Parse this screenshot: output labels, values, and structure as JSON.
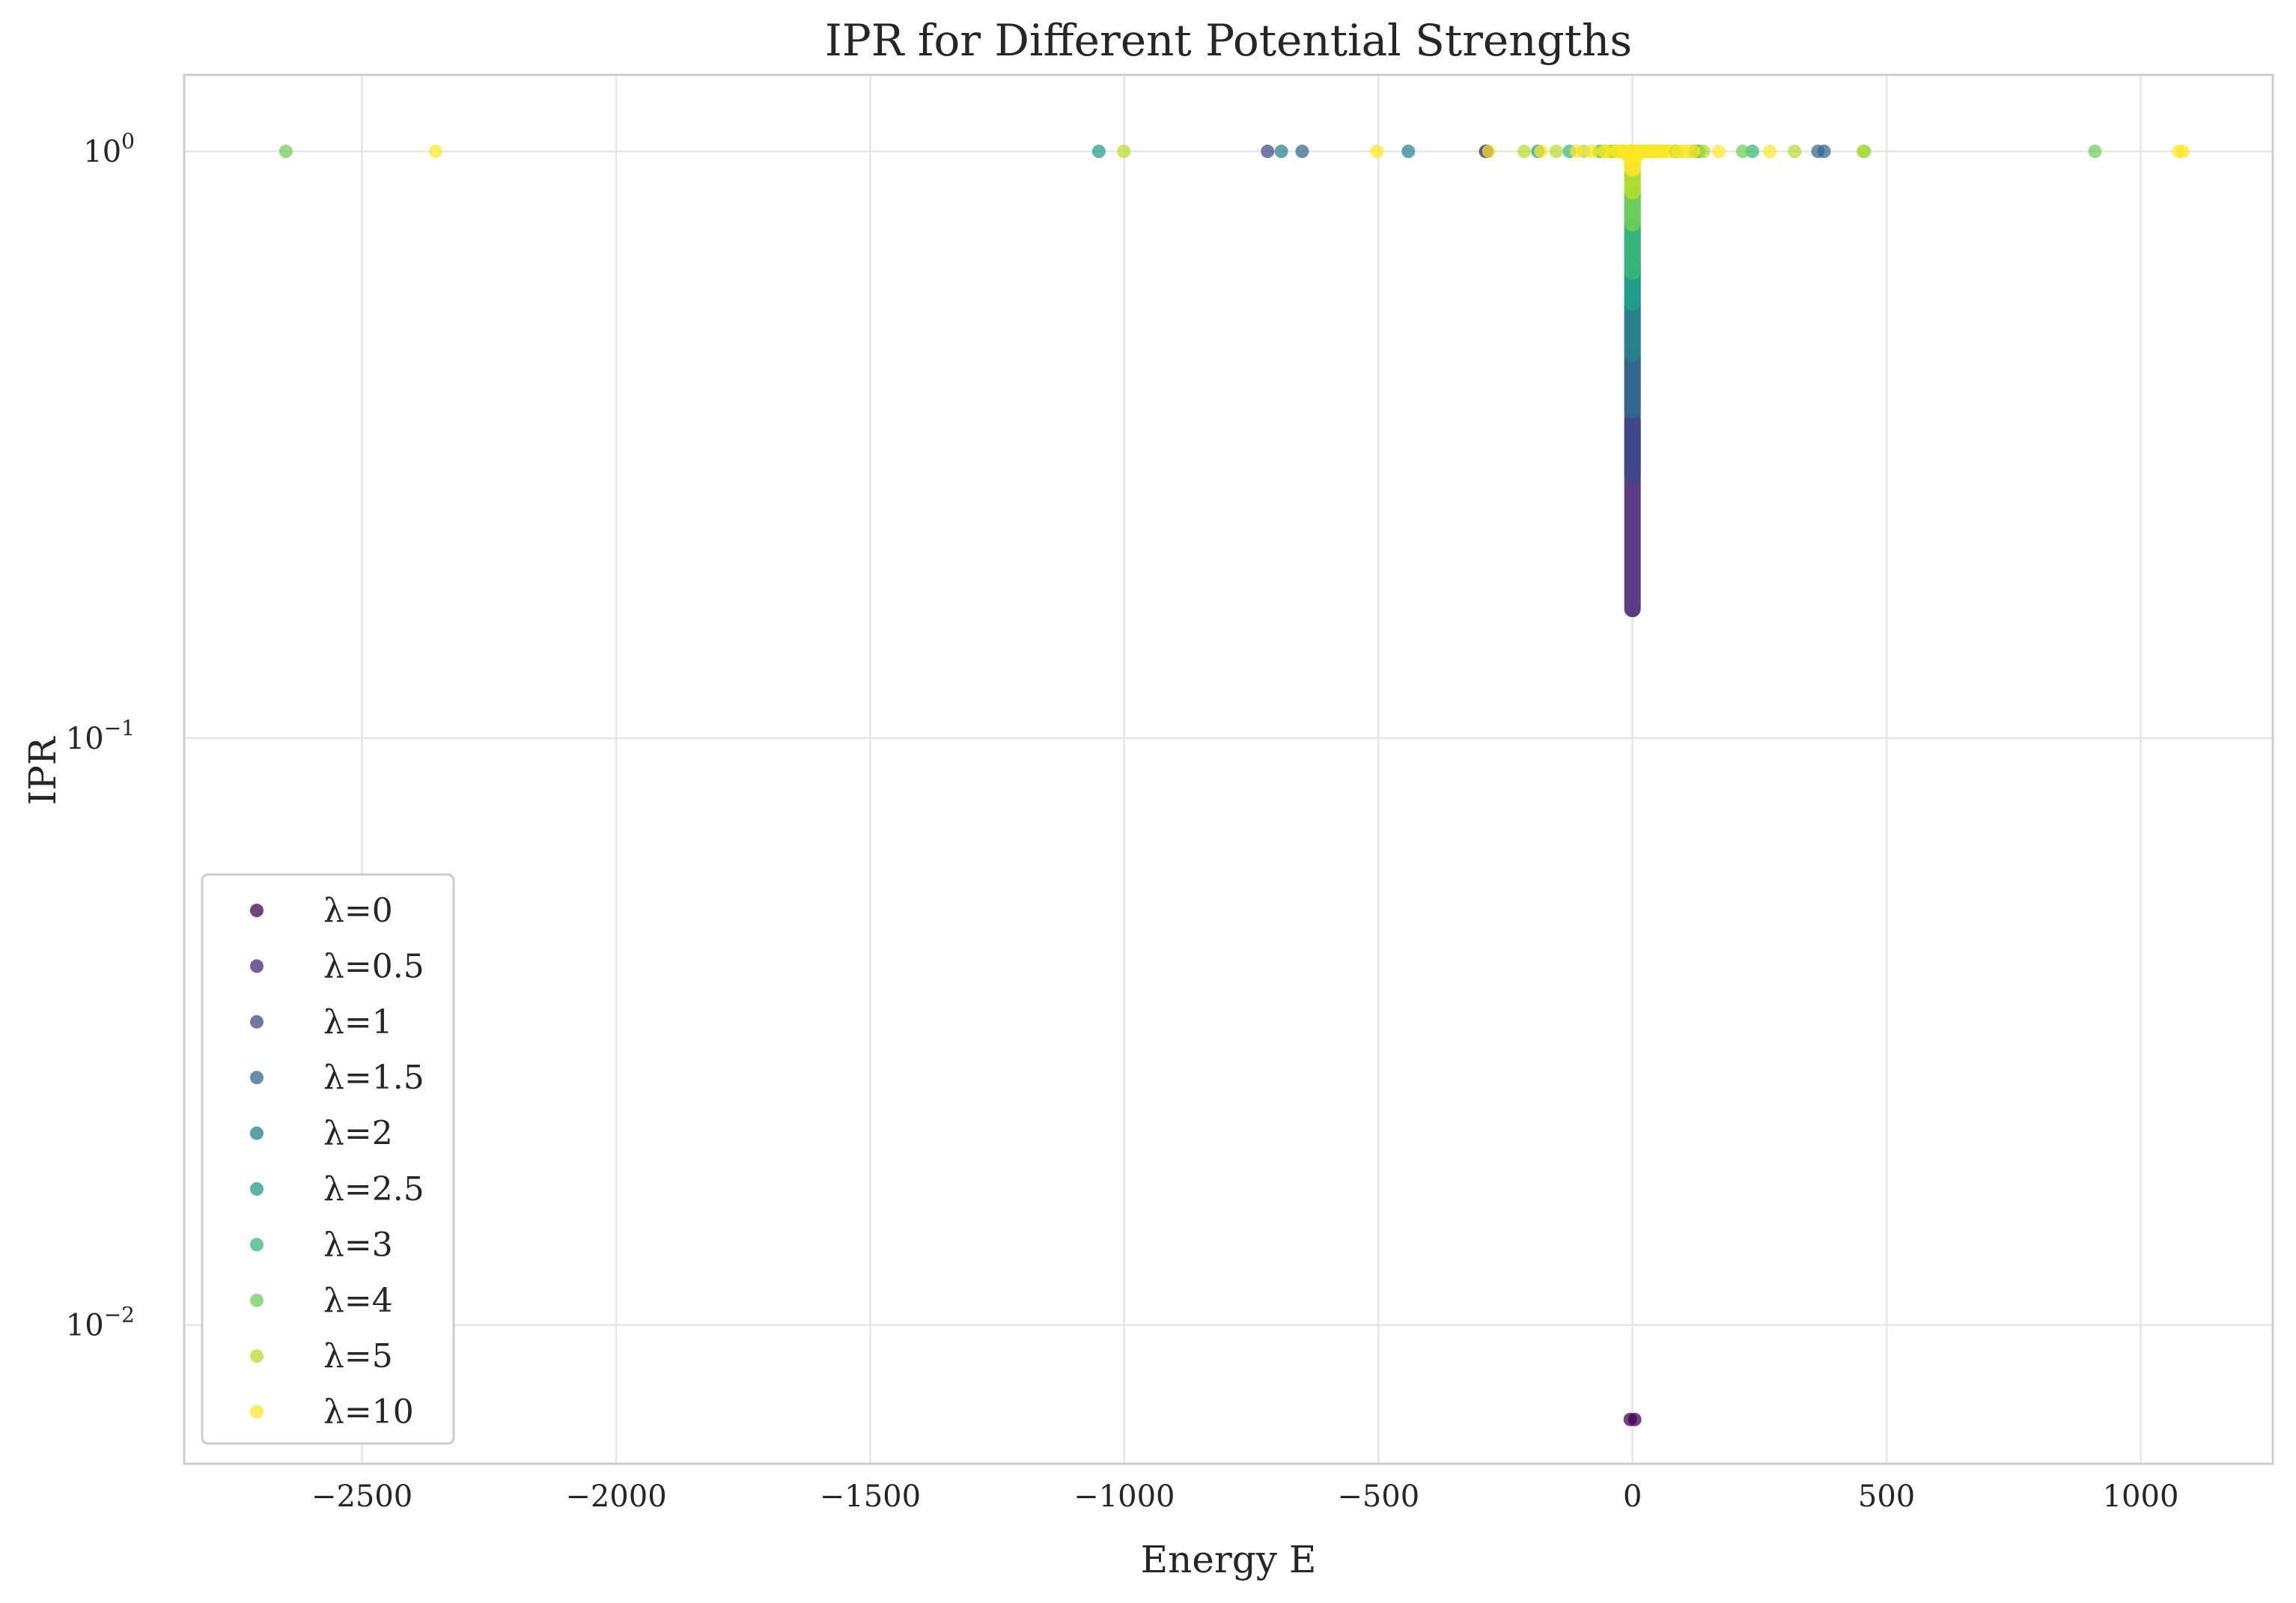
{
  "chart_data": {
    "type": "scatter",
    "title": "IPR for Different Potential Strengths",
    "xlabel": "Energy E",
    "ylabel": "IPR",
    "xscale": "linear",
    "yscale": "log",
    "xlim": [
      -2850,
      1260
    ],
    "ylim": [
      0.0058,
      1.35
    ],
    "xticks": [
      -2500,
      -2000,
      -1500,
      -1000,
      -500,
      0,
      500,
      1000
    ],
    "xtick_labels": [
      "−2500",
      "−2000",
      "−1500",
      "−1000",
      "−500",
      "0",
      "500",
      "1000"
    ],
    "yticks": [
      {
        "value": 1,
        "base": "10",
        "exp": "0"
      },
      {
        "value": 0.1,
        "base": "10",
        "exp": "−1"
      },
      {
        "value": 0.01,
        "base": "10",
        "exp": "−2"
      }
    ],
    "grid": true,
    "legend_position": "lower-left",
    "series": [
      {
        "name": "λ=0",
        "color": "#440154",
        "outliers": [],
        "stem": [
          0.0069,
          0.0069
        ]
      },
      {
        "name": "λ=0.5",
        "color": "#482878",
        "outliers": [
          [
            -289,
            1.0
          ]
        ],
        "stem": [
          0.165,
          0.35
        ]
      },
      {
        "name": "λ=1",
        "color": "#3e4989",
        "outliers": [
          [
            -718,
            1.0
          ],
          [
            -286,
            1.0
          ]
        ],
        "stem": [
          0.28,
          0.45
        ]
      },
      {
        "name": "λ=1.5",
        "color": "#31688e",
        "outliers": [
          [
            -650,
            1.0
          ],
          [
            365,
            1.0
          ],
          [
            377,
            1.0
          ]
        ],
        "stem": [
          0.36,
          0.55
        ]
      },
      {
        "name": "λ=2",
        "color": "#26828e",
        "outliers": [
          [
            -441,
            1.0
          ],
          [
            -691,
            1.0
          ]
        ],
        "stem": [
          0.45,
          0.65
        ]
      },
      {
        "name": "λ=2.5",
        "color": "#1f9e89",
        "outliers": [
          [
            -1050,
            1.0
          ],
          [
            -186,
            1.0
          ]
        ],
        "stem": [
          0.55,
          0.75
        ]
      },
      {
        "name": "λ=3",
        "color": "#35b779",
        "outliers": [
          [
            236,
            1.0
          ],
          [
            131,
            1.0
          ],
          [
            -124,
            1.0
          ]
        ],
        "stem": [
          0.62,
          0.85
        ]
      },
      {
        "name": "λ=4",
        "color": "#6ece58",
        "outliers": [
          [
            -2650,
            1.0
          ],
          [
            910,
            1.0
          ],
          [
            217,
            1.0
          ],
          [
            123,
            1.0
          ],
          [
            -66,
            1.0
          ],
          [
            456,
            1.0
          ]
        ],
        "stem": [
          0.75,
          0.92
        ]
      },
      {
        "name": "λ=5",
        "color": "#b5de2b",
        "outliers": [
          [
            -1001,
            1.0
          ],
          [
            319,
            1.0
          ],
          [
            -213,
            1.0
          ],
          [
            -150,
            1.0
          ],
          [
            454,
            1.0
          ],
          [
            -40,
            1.0
          ],
          [
            86,
            1.0
          ],
          [
            140,
            1.0
          ],
          [
            -96,
            1.0
          ]
        ],
        "stem": [
          0.85,
          0.97
        ]
      },
      {
        "name": "λ=10",
        "color": "#fde725",
        "outliers": [
          [
            -2355,
            1.0
          ],
          [
            -503,
            1.0
          ],
          [
            -283,
            1.0
          ],
          [
            -180,
            1.0
          ],
          [
            -110,
            1.0
          ],
          [
            -80,
            1.0
          ],
          [
            -55,
            1.0
          ],
          [
            -30,
            1.0
          ],
          [
            35,
            1.0
          ],
          [
            60,
            1.0
          ],
          [
            90,
            1.0
          ],
          [
            120,
            1.0
          ],
          [
            170,
            1.0
          ],
          [
            270,
            1.0
          ],
          [
            1075,
            1.0
          ],
          [
            1083,
            1.0
          ]
        ],
        "stem": [
          0.93,
          1.0
        ]
      }
    ]
  }
}
